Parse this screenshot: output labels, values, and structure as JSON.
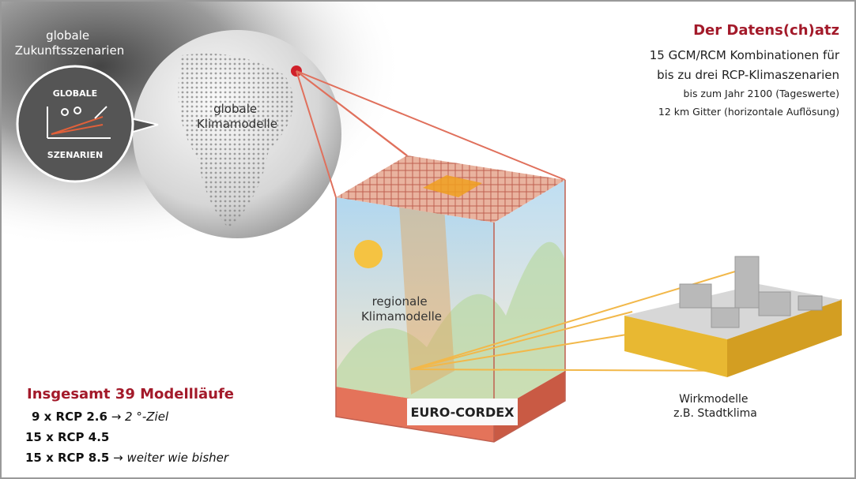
{
  "globe": {
    "scenario_lines": [
      "globale",
      "Zukunftsszenarien"
    ],
    "icon": {
      "top": "GLOBALE",
      "bottom": "SZENARIEN"
    },
    "model_lines": [
      "globale",
      "Klimamodelle"
    ]
  },
  "dataset": {
    "title": "Der Datens(ch)atz",
    "lines": [
      "15 GCM/RCM Kombinationen für",
      "bis zu drei RCP-Klimaszenarien",
      "bis zum Jahr 2100 (Tageswerte)",
      "12 km Gitter (horizontale Auflösung)"
    ]
  },
  "region": {
    "label_lines": [
      "regionale",
      "Klimamodelle"
    ],
    "badge": "EURO-CORDEX"
  },
  "impact": {
    "label_lines": [
      "Wirkmodelle",
      "z.B. Stadtklima"
    ]
  },
  "runs": {
    "title": "Insgesamt 39 Modellläufe",
    "items": [
      {
        "count": "9 x RCP 2.6",
        "arrow": "→",
        "note": "2 °-Ziel"
      },
      {
        "count": "15 x RCP 4.5"
      },
      {
        "count": "15 x RCP 8.5",
        "arrow": "→",
        "note": "weiter wie bisher"
      }
    ]
  }
}
